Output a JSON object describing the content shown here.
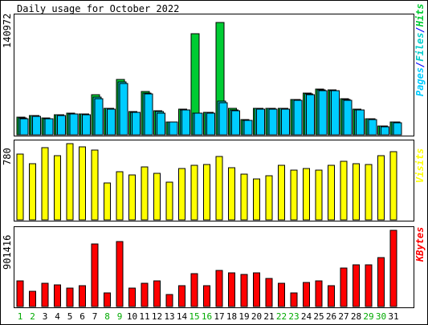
{
  "title": "Daily usage for October 2022",
  "colors": {
    "pages": "#00ccff",
    "files": "#00cccc",
    "hits": "#00cc33",
    "visits": "#ffff00",
    "kbytes": "#ff0000",
    "weekday": "#000000",
    "weekend": "#00aa00",
    "frame": "#000000",
    "legend_slash": "#0000ff"
  },
  "legends": {
    "top": {
      "pages": "Pages",
      "files": "Files",
      "hits": "Hits",
      "sep": "/"
    },
    "mid": {
      "visits": "Visits"
    },
    "bot": {
      "kbytes": "KBytes"
    }
  },
  "chart_data": [
    {
      "type": "bar",
      "name": "hits-files-pages",
      "max_label": "140972",
      "ylim": [
        0,
        140972
      ],
      "categories": [
        "1",
        "2",
        "3",
        "4",
        "5",
        "6",
        "7",
        "8",
        "9",
        "10",
        "11",
        "12",
        "13",
        "14",
        "15",
        "16",
        "17",
        "18",
        "19",
        "20",
        "21",
        "22",
        "23",
        "24",
        "25",
        "26",
        "27",
        "28",
        "29",
        "30",
        "31"
      ],
      "series": [
        {
          "name": "Hits",
          "values": [
            21100,
            23700,
            20200,
            24600,
            26000,
            25200,
            48400,
            32200,
            67200,
            28000,
            52600,
            29500,
            16000,
            31300,
            122500,
            27500,
            136500,
            31800,
            18100,
            32500,
            32200,
            31900,
            43200,
            50300,
            55400,
            54200,
            43700,
            31500,
            19500,
            10800,
            16000
          ]
        },
        {
          "name": "Files",
          "values": [
            20500,
            23400,
            19900,
            24300,
            25700,
            25000,
            45300,
            31600,
            64000,
            27500,
            51000,
            27800,
            15700,
            30600,
            26500,
            27000,
            40600,
            29900,
            17800,
            31800,
            31600,
            31700,
            42500,
            49700,
            54200,
            53800,
            42800,
            30500,
            19200,
            10400,
            15400
          ]
        },
        {
          "name": "Pages",
          "values": [
            19800,
            22800,
            19400,
            23800,
            25300,
            24600,
            43700,
            31100,
            62300,
            27100,
            50000,
            26300,
            15400,
            29800,
            26000,
            26600,
            39300,
            29300,
            17400,
            31100,
            31100,
            31400,
            41800,
            48900,
            53300,
            53300,
            41900,
            29700,
            18800,
            10100,
            14900
          ]
        }
      ]
    },
    {
      "type": "bar",
      "name": "visits",
      "max_label": "780",
      "ylim": [
        0,
        780
      ],
      "categories": [
        "1",
        "2",
        "3",
        "4",
        "5",
        "6",
        "7",
        "8",
        "9",
        "10",
        "11",
        "12",
        "13",
        "14",
        "15",
        "16",
        "17",
        "18",
        "19",
        "20",
        "21",
        "22",
        "23",
        "24",
        "25",
        "26",
        "27",
        "28",
        "29",
        "30",
        "31"
      ],
      "series": [
        {
          "name": "Visits",
          "values": [
            675,
            575,
            740,
            655,
            780,
            745,
            715,
            375,
            490,
            460,
            545,
            475,
            385,
            525,
            560,
            565,
            650,
            535,
            470,
            420,
            450,
            560,
            510,
            525,
            505,
            555,
            600,
            575,
            565,
            660,
            700
          ]
        }
      ]
    },
    {
      "type": "bar",
      "name": "kbytes",
      "max_label": "901416",
      "ylim": [
        0,
        901416
      ],
      "categories": [
        "1",
        "2",
        "3",
        "4",
        "5",
        "6",
        "7",
        "8",
        "9",
        "10",
        "11",
        "12",
        "13",
        "14",
        "15",
        "16",
        "17",
        "18",
        "19",
        "20",
        "21",
        "22",
        "23",
        "24",
        "25",
        "26",
        "27",
        "28",
        "29",
        "30",
        "31"
      ],
      "series": [
        {
          "name": "KBytes",
          "values": [
            303000,
            181000,
            276000,
            259000,
            215000,
            242000,
            740000,
            162000,
            765000,
            215000,
            276000,
            303000,
            141000,
            242000,
            385000,
            242000,
            424000,
            403000,
            376000,
            403000,
            330000,
            276000,
            162000,
            289000,
            303000,
            242000,
            459000,
            491000,
            491000,
            578000,
            901416
          ]
        }
      ]
    },
    {
      "type": "table",
      "name": "day-labels",
      "days": [
        "1",
        "2",
        "3",
        "4",
        "5",
        "6",
        "7",
        "8",
        "9",
        "10",
        "11",
        "12",
        "13",
        "14",
        "15",
        "16",
        "17",
        "18",
        "19",
        "20",
        "21",
        "22",
        "23",
        "24",
        "25",
        "26",
        "27",
        "28",
        "29",
        "30",
        "31"
      ],
      "weekend": [
        true,
        true,
        false,
        false,
        false,
        false,
        false,
        true,
        true,
        false,
        false,
        false,
        false,
        false,
        true,
        true,
        false,
        false,
        false,
        false,
        false,
        true,
        true,
        false,
        false,
        false,
        false,
        false,
        true,
        true,
        false
      ]
    }
  ]
}
